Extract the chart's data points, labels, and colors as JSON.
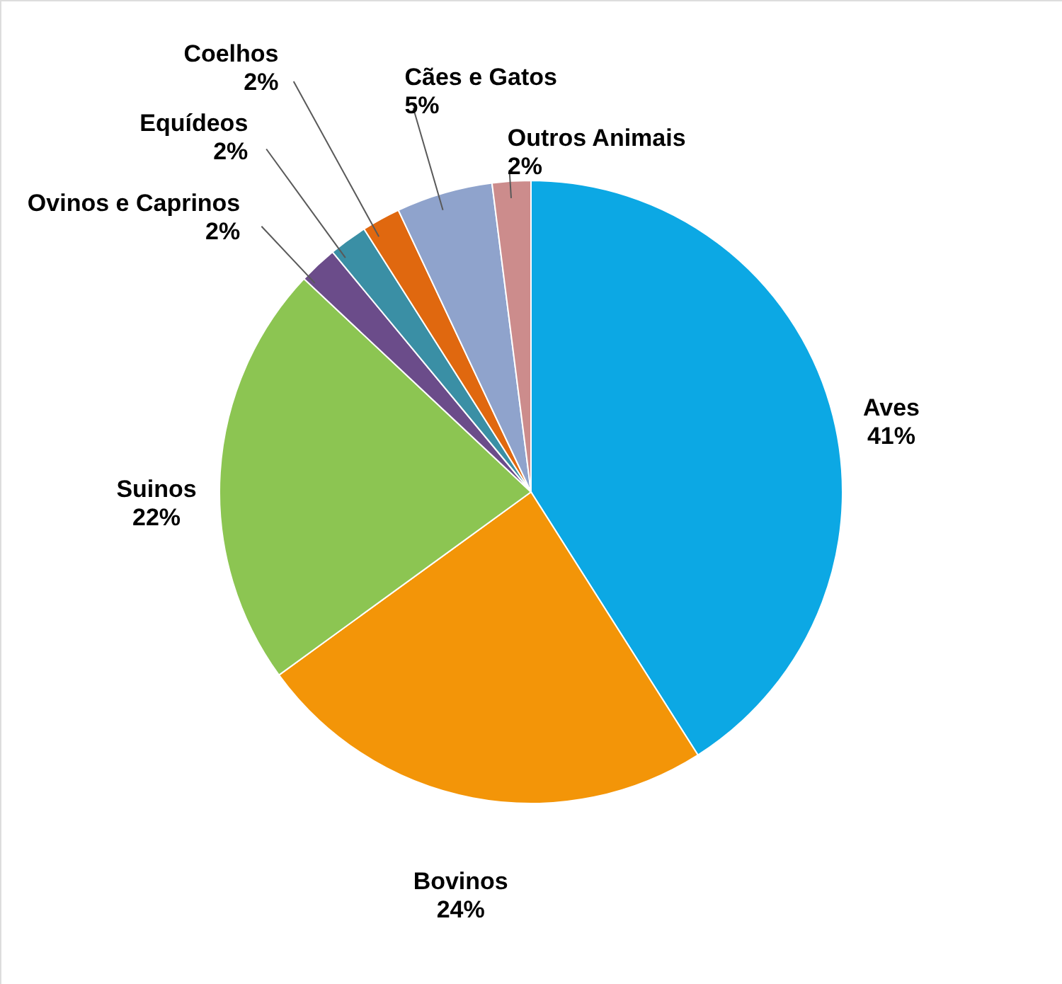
{
  "chart_data": {
    "type": "pie",
    "categories": [
      "Aves",
      "Bovinos",
      "Suinos",
      "Ovinos e Caprinos",
      "Equídeos",
      "Coelhos",
      "Cães e Gatos",
      "Outros Animais"
    ],
    "values": [
      41,
      24,
      22,
      2,
      2,
      2,
      5,
      2
    ],
    "value_labels": [
      "41%",
      "24%",
      "22%",
      "2%",
      "2%",
      "2%",
      "5%",
      "2%"
    ],
    "colors": [
      "#0ca8e4",
      "#f39508",
      "#8cc552",
      "#6b4c8a",
      "#3a8fa5",
      "#e0680f",
      "#8fa3cc",
      "#cc8c8c"
    ]
  }
}
